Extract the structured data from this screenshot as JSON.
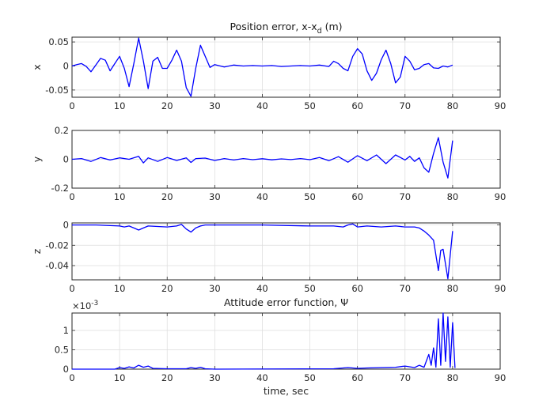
{
  "chart_data": [
    {
      "type": "line",
      "title": "Position error, x-x",
      "title_subscript": "d",
      "title_suffix": " (m)",
      "ylabel": "x",
      "xlabel": "",
      "xlim": [
        0,
        90
      ],
      "ylim": [
        -0.065,
        0.06
      ],
      "xticks": [
        0,
        10,
        20,
        30,
        40,
        50,
        60,
        70,
        80,
        90
      ],
      "yticks": [
        -0.05,
        0,
        0.05
      ],
      "ytick_labels": [
        "-0.05",
        "0",
        "0.05"
      ],
      "grid": true,
      "series": [
        {
          "color": "#0000ff",
          "x": [
            0,
            1,
            2,
            3,
            4,
            5,
            6,
            7,
            8,
            9,
            10,
            11,
            12,
            13,
            14,
            15,
            16,
            17,
            18,
            19,
            20,
            21,
            22,
            23,
            24,
            25,
            26,
            27,
            28,
            29,
            30,
            32,
            34,
            36,
            38,
            40,
            42,
            44,
            46,
            48,
            50,
            52,
            54,
            55,
            56,
            57,
            58,
            59,
            60,
            61,
            62,
            63,
            64,
            65,
            66,
            67,
            68,
            69,
            70,
            71,
            72,
            73,
            74,
            75,
            76,
            77,
            78,
            79,
            80
          ],
          "y": [
            0,
            0.003,
            0.005,
            -0.001,
            -0.012,
            0.002,
            0.016,
            0.012,
            -0.01,
            0.005,
            0.02,
            -0.005,
            -0.043,
            0.005,
            0.058,
            0.01,
            -0.047,
            0.01,
            0.018,
            -0.005,
            -0.005,
            0.012,
            0.033,
            0.01,
            -0.045,
            -0.063,
            -0.005,
            0.043,
            0.02,
            -0.003,
            0.003,
            -0.002,
            0.002,
            0,
            0.001,
            0,
            0.001,
            -0.001,
            0,
            0.001,
            0,
            0.002,
            -0.001,
            0.01,
            0.005,
            -0.005,
            -0.01,
            0.02,
            0.036,
            0.025,
            -0.01,
            -0.03,
            -0.015,
            0.013,
            0.033,
            0.005,
            -0.035,
            -0.023,
            0.02,
            0.01,
            -0.008,
            -0.005,
            0.003,
            0.005,
            -0.004,
            -0.005,
            0,
            -0.002,
            0.002
          ]
        }
      ]
    },
    {
      "type": "line",
      "title": "",
      "ylabel": "y",
      "xlabel": "",
      "xlim": [
        0,
        90
      ],
      "ylim": [
        -0.2,
        0.2
      ],
      "xticks": [
        0,
        10,
        20,
        30,
        40,
        50,
        60,
        70,
        80,
        90
      ],
      "yticks": [
        -0.2,
        0,
        0.2
      ],
      "ytick_labels": [
        "-0.2",
        "0",
        "0.2"
      ],
      "grid": true,
      "series": [
        {
          "color": "#0000ff",
          "x": [
            0,
            2,
            4,
            6,
            8,
            10,
            12,
            14,
            15,
            16,
            18,
            20,
            22,
            24,
            25,
            26,
            28,
            30,
            32,
            34,
            36,
            38,
            40,
            42,
            44,
            46,
            48,
            50,
            52,
            54,
            56,
            58,
            60,
            62,
            64,
            66,
            68,
            70,
            71,
            72,
            73,
            74,
            75,
            76,
            77,
            78,
            79,
            80
          ],
          "y": [
            0,
            0.005,
            -0.015,
            0.012,
            -0.005,
            0.01,
            0,
            0.02,
            -0.025,
            0.01,
            -0.015,
            0.012,
            -0.008,
            0.01,
            -0.022,
            0.005,
            0.008,
            -0.008,
            0.005,
            -0.005,
            0.005,
            -0.003,
            0.004,
            -0.004,
            0.003,
            -0.002,
            0.005,
            -0.003,
            0.012,
            -0.01,
            0.018,
            -0.02,
            0.025,
            -0.01,
            0.03,
            -0.03,
            0.03,
            -0.005,
            0.02,
            -0.015,
            0.01,
            -0.06,
            -0.09,
            0.04,
            0.15,
            -0.02,
            -0.13,
            0.13
          ]
        }
      ]
    },
    {
      "type": "line",
      "title": "",
      "ylabel": "z",
      "xlabel": "",
      "xlim": [
        0,
        90
      ],
      "ylim": [
        -0.054,
        0.002
      ],
      "xticks": [
        0,
        10,
        20,
        30,
        40,
        50,
        60,
        70,
        80,
        90
      ],
      "yticks": [
        -0.04,
        -0.02,
        0
      ],
      "ytick_labels": [
        "-0.04",
        "-0.02",
        "0"
      ],
      "grid": true,
      "series": [
        {
          "color": "#0000ff",
          "x": [
            0,
            5,
            10,
            11,
            12,
            13,
            14,
            15,
            16,
            20,
            22,
            23,
            24,
            25,
            26,
            27,
            28,
            30,
            40,
            50,
            55,
            57,
            58,
            59,
            60,
            62,
            65,
            68,
            70,
            72,
            73,
            74,
            75,
            76,
            77,
            77.5,
            78,
            79,
            80
          ],
          "y": [
            0,
            0,
            -0.001,
            -0.002,
            -0.001,
            -0.003,
            -0.005,
            -0.003,
            -0.001,
            -0.002,
            -0.001,
            0.0005,
            -0.004,
            -0.007,
            -0.003,
            -0.001,
            0,
            0,
            0,
            -0.001,
            -0.001,
            -0.002,
            0,
            0.001,
            -0.002,
            -0.001,
            -0.002,
            -0.001,
            -0.002,
            -0.002,
            -0.003,
            -0.006,
            -0.01,
            -0.015,
            -0.045,
            -0.025,
            -0.024,
            -0.053,
            -0.006
          ]
        }
      ]
    },
    {
      "type": "line",
      "title": "Attitude error function, Ψ",
      "ylabel": "",
      "xlabel": "time, sec",
      "xlim": [
        0,
        90
      ],
      "ylim": [
        0,
        1.45
      ],
      "y_exponent_label": "×10",
      "y_exponent_power": "-3",
      "xticks": [
        0,
        10,
        20,
        30,
        40,
        50,
        60,
        70,
        80,
        90
      ],
      "yticks": [
        0,
        0.5,
        1
      ],
      "ytick_labels": [
        "0",
        "0.5",
        "1"
      ],
      "grid": true,
      "series": [
        {
          "color": "#0000ff",
          "x": [
            0,
            9,
            10,
            11,
            12,
            13,
            14,
            15,
            16,
            17,
            20,
            24,
            25,
            26,
            27,
            28,
            30,
            55,
            58,
            60,
            62,
            65,
            68,
            70,
            72,
            73,
            74,
            75,
            75.5,
            76,
            76.5,
            77,
            77.5,
            78,
            78.5,
            79,
            79.5,
            80,
            80.5
          ],
          "y": [
            0,
            0,
            0.04,
            0.02,
            0.06,
            0.03,
            0.1,
            0.05,
            0.08,
            0.02,
            0.01,
            0.01,
            0.04,
            0.02,
            0.05,
            0.01,
            0,
            0.01,
            0.04,
            0.02,
            0.03,
            0.04,
            0.05,
            0.08,
            0.04,
            0.1,
            0.05,
            0.38,
            0.1,
            0.55,
            0.05,
            1.3,
            0.1,
            1.45,
            0.2,
            1.35,
            0.05,
            1.2,
            0.03
          ]
        }
      ]
    }
  ]
}
